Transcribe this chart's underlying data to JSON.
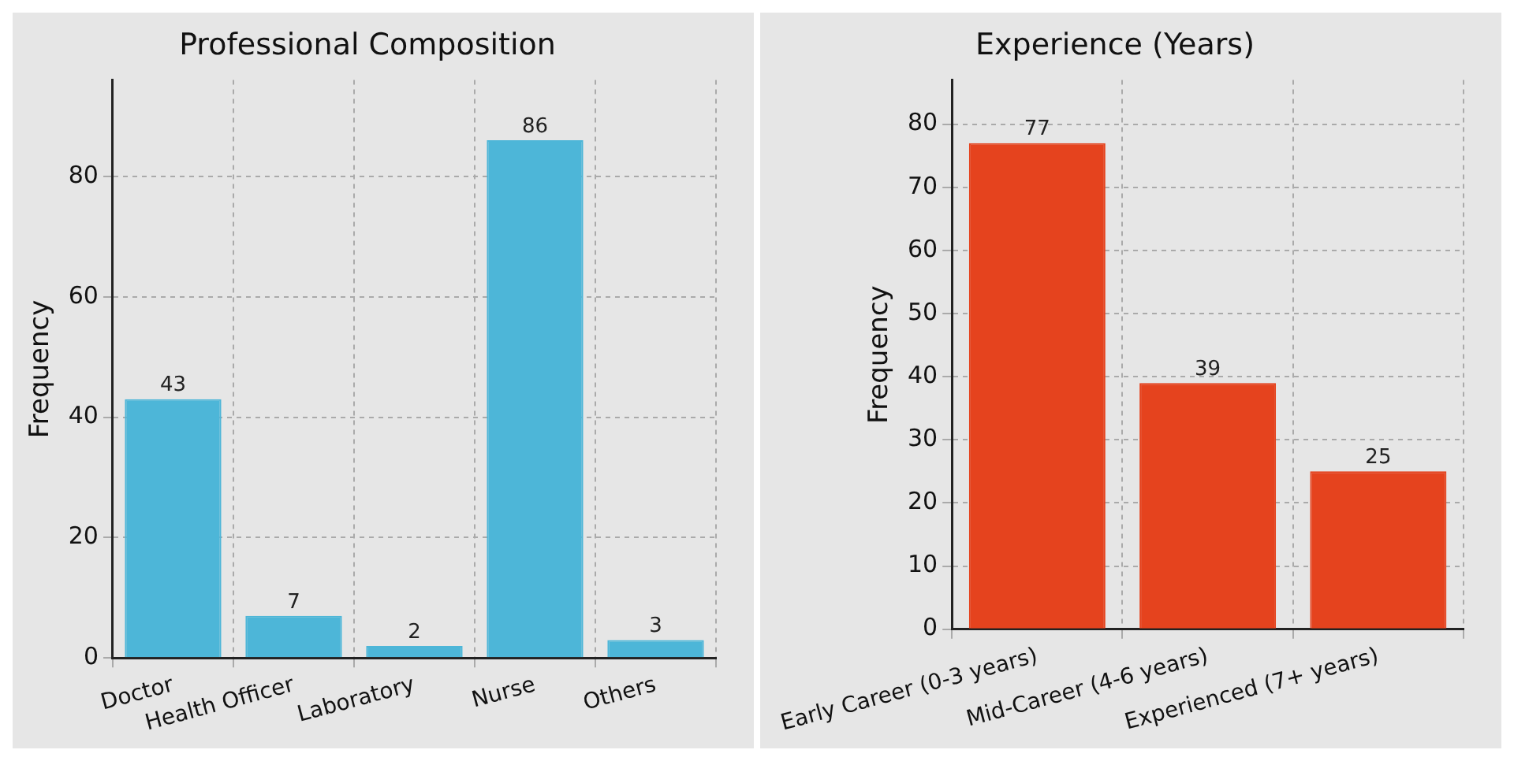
{
  "chart_data": [
    {
      "type": "bar",
      "title": "Professional Composition",
      "ylabel": "Frequency",
      "categories": [
        "Doctor",
        "Health Officer",
        "Laboratory",
        "Nurse",
        "Others"
      ],
      "values": [
        43,
        7,
        2,
        86,
        3
      ],
      "color": "#4db6d8",
      "ylim": [
        0,
        96
      ],
      "yticks": [
        0,
        20,
        40,
        60,
        80
      ],
      "grid": true,
      "data_labels": true
    },
    {
      "type": "bar",
      "title": "Experience (Years)",
      "ylabel": "Frequency",
      "categories": [
        "Early Career (0-3 years)",
        "Mid-Career (4-6 years)",
        "Experienced (7+ years)"
      ],
      "values": [
        77,
        39,
        25
      ],
      "color": "#e5431e",
      "ylim": [
        0,
        87
      ],
      "yticks": [
        0,
        10,
        20,
        30,
        40,
        50,
        60,
        70,
        80
      ],
      "grid": true,
      "data_labels": true
    }
  ]
}
